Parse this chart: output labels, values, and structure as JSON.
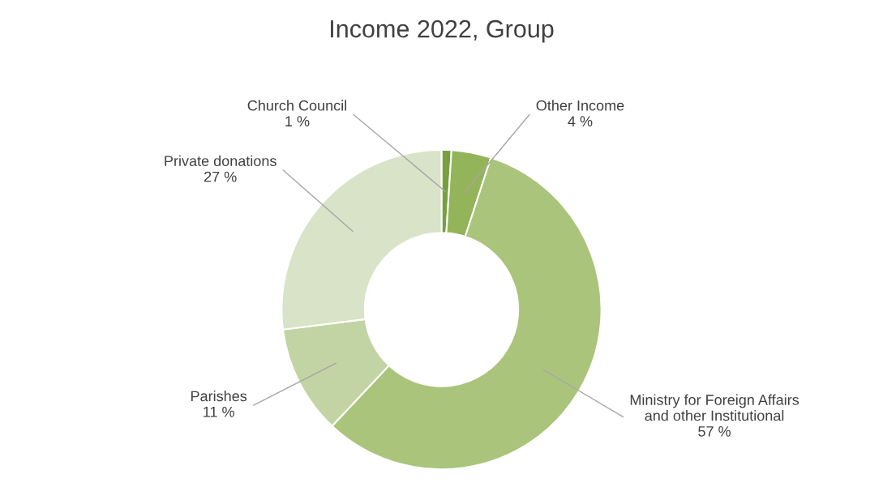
{
  "chart_data": {
    "type": "donut",
    "title": "Income 2022, Group",
    "categories": [
      "Church Council",
      "Other Income",
      "Ministry for Foreign Affairs\nand other Institutional",
      "Parishes",
      "Private donations"
    ],
    "values": [
      1,
      4,
      57,
      11,
      27
    ],
    "value_labels": [
      "1 %",
      "4 %",
      "57 %",
      "11 %",
      "27 %"
    ],
    "colors": [
      "#76a03c",
      "#93b458",
      "#aac57b",
      "#c3d4a4",
      "#d8e3c7"
    ],
    "legend": false
  }
}
